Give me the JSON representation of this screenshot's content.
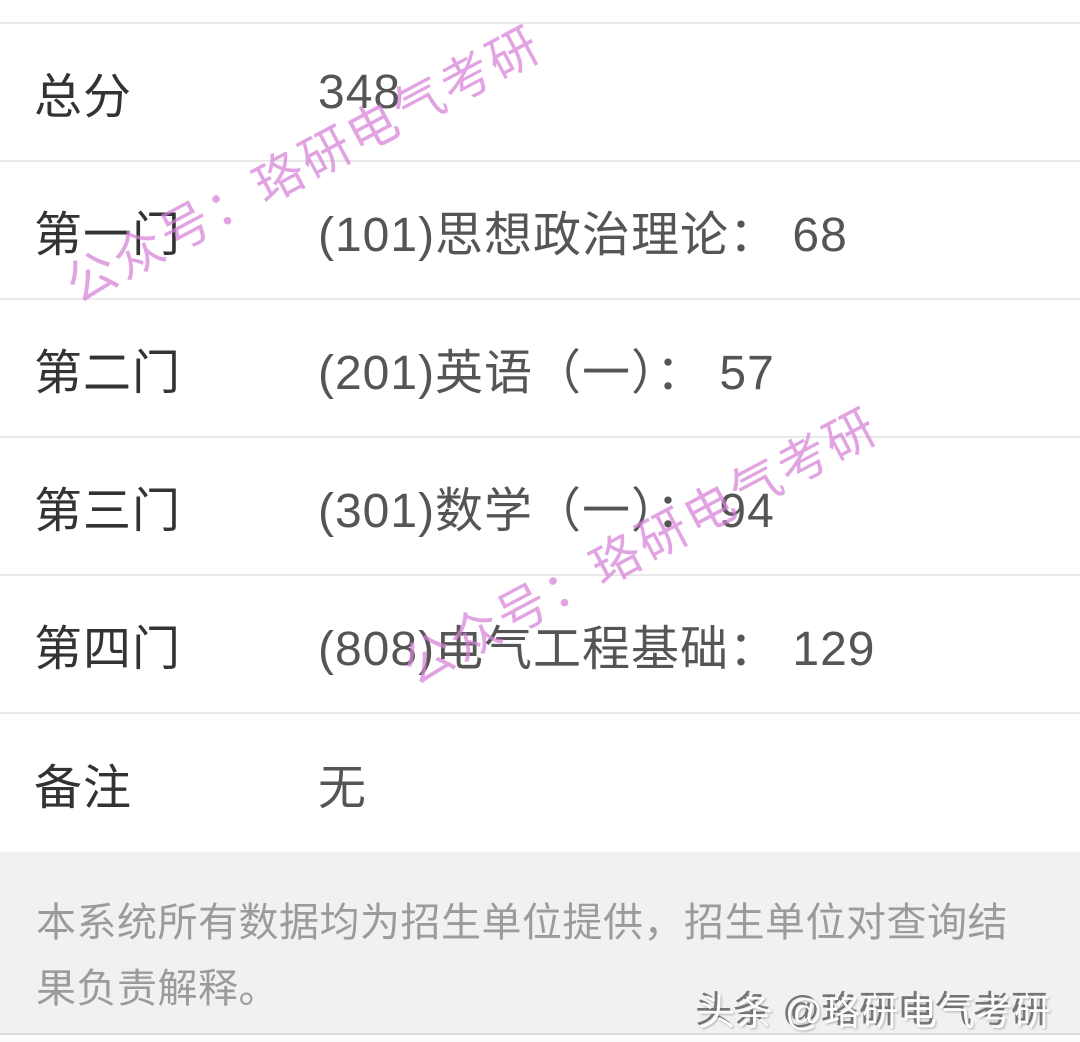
{
  "rows": [
    {
      "label": "总分",
      "value": "348"
    },
    {
      "label": "第一门",
      "value": "(101)思想政治理论： 68"
    },
    {
      "label": "第二门",
      "value": "(201)英语（一）： 57"
    },
    {
      "label": "第三门",
      "value": "(301)数学（一）： 94"
    },
    {
      "label": "第四门",
      "value": "(808)电气工程基础： 129"
    },
    {
      "label": "备注",
      "value": "无"
    }
  ],
  "footer": {
    "disclaimer": "本系统所有数据均为招生单位提供，招生单位对查询结果负责解释。"
  },
  "watermark": {
    "text": "公众号：珞研电气考研",
    "color": "#d680d6"
  },
  "toutiao": {
    "text": "头条 @珞研电气考研"
  },
  "colors": {
    "label_text": "#333333",
    "value_text": "#555555",
    "divider": "#e9e9e9",
    "footer_bg": "#f1f1f1",
    "footer_text": "#9b9b9b",
    "page_bg": "#ffffff"
  }
}
